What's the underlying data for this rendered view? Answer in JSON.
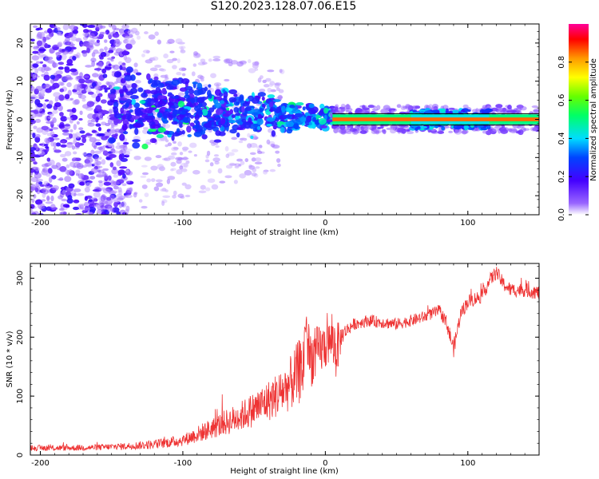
{
  "figure_title": "S120.2023.128.07.06.E15",
  "chart_data": [
    {
      "type": "heatmap",
      "title": "S120.2023.128.07.06.E15",
      "xlabel": "Height of straight line (km)",
      "ylabel": "Frequency (Hz)",
      "xlim": [
        -207,
        150
      ],
      "ylim": [
        -25,
        25
      ],
      "x_ticks": [
        -200,
        -100,
        0,
        100
      ],
      "y_ticks": [
        -20,
        -10,
        0,
        10,
        20
      ],
      "colorbar": {
        "label": "Normalized spectral amplitude",
        "range": [
          0,
          1
        ],
        "ticks": [
          "0.0",
          "0.2",
          "0.4",
          "0.6",
          "0.8"
        ],
        "colormap": "hsv-rainbow (white/violet low → blue → cyan → green → yellow → red → magenta high)"
      },
      "features": {
        "stable_line": {
          "x_range": [
            5,
            150
          ],
          "frequency_hz": 0,
          "amplitude": 0.85
        },
        "noise_region": {
          "x_range": [
            -207,
            -140
          ],
          "amplitude_range": [
            0.02,
            0.45
          ]
        },
        "transition_region": {
          "x_range": [
            -150,
            5
          ],
          "frequency_spread_hz": [
            -10,
            12
          ]
        }
      }
    },
    {
      "type": "line",
      "xlabel": "Height of straight line (km)",
      "ylabel": "SNR (10 * v/v)",
      "xlim": [
        -207,
        150
      ],
      "ylim": [
        0,
        325
      ],
      "x_ticks": [
        -200,
        -100,
        0,
        100
      ],
      "y_ticks": [
        0,
        100,
        200,
        300
      ],
      "color": "#ee3333",
      "series": [
        {
          "name": "",
          "x": [
            -207,
            -180,
            -160,
            -140,
            -120,
            -100,
            -90,
            -80,
            -70,
            -60,
            -50,
            -40,
            -30,
            -25,
            -20,
            -15,
            -14,
            -12,
            -10,
            -5,
            0,
            5,
            7,
            10,
            12,
            15,
            20,
            30,
            40,
            50,
            60,
            70,
            80,
            85,
            90,
            95,
            100,
            110,
            115,
            120,
            125,
            130,
            140,
            150
          ],
          "y": [
            12,
            12,
            13,
            15,
            18,
            25,
            35,
            45,
            55,
            65,
            78,
            92,
            108,
            120,
            135,
            155,
            240,
            175,
            165,
            175,
            185,
            195,
            180,
            190,
            205,
            212,
            222,
            228,
            225,
            222,
            228,
            235,
            245,
            225,
            180,
            240,
            260,
            270,
            295,
            310,
            290,
            280,
            280,
            275
          ],
          "noise_amplitude": [
            5,
            5,
            5,
            6,
            8,
            10,
            14,
            18,
            22,
            25,
            30,
            35,
            40,
            45,
            55,
            60,
            40,
            45,
            50,
            45,
            40,
            35,
            60,
            30,
            15,
            12,
            10,
            10,
            10,
            10,
            10,
            10,
            10,
            12,
            15,
            12,
            12,
            12,
            12,
            12,
            12,
            12,
            12,
            12
          ]
        }
      ]
    }
  ]
}
